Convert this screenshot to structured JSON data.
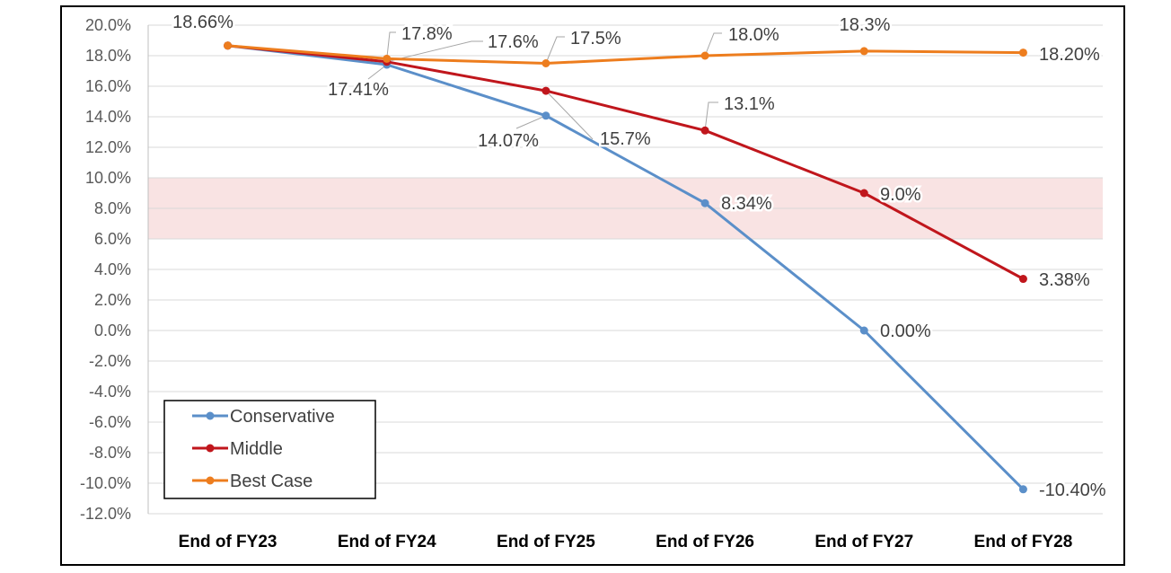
{
  "chart_data": {
    "type": "line",
    "categories": [
      "End of FY23",
      "End of FY24",
      "End of FY25",
      "End of FY26",
      "End of FY27",
      "End of FY28"
    ],
    "ylim": [
      -12,
      20
    ],
    "ytick_step": 2,
    "ytick_labels": [
      "20.0%",
      "18.0%",
      "16.0%",
      "14.0%",
      "12.0%",
      "10.0%",
      "8.0%",
      "6.0%",
      "4.0%",
      "2.0%",
      "0.0%",
      "-2.0%",
      "-4.0%",
      "-6.0%",
      "-8.0%",
      "-10.0%",
      "-12.0%"
    ],
    "shaded_band": {
      "from": 6,
      "to": 10,
      "color": "#f9e3e3"
    },
    "grid": true,
    "legend_position": "bottom-left",
    "series": [
      {
        "name": "Conservative",
        "color": "#5b8fc9",
        "values": [
          18.66,
          17.41,
          14.07,
          8.34,
          0.0,
          -10.4
        ],
        "labels": [
          "18.66%",
          "17.41%",
          "14.07%",
          "8.34%",
          "0.00%",
          "-10.40%"
        ]
      },
      {
        "name": "Middle",
        "color": "#c0161c",
        "values": [
          18.66,
          17.6,
          15.7,
          13.1,
          9.0,
          3.38
        ],
        "labels": [
          "",
          "17.6%",
          "15.7%",
          "13.1%",
          "9.0%",
          "3.38%"
        ]
      },
      {
        "name": "Best Case",
        "color": "#ed7d1e",
        "values": [
          18.66,
          17.8,
          17.5,
          18.0,
          18.3,
          18.2
        ],
        "labels": [
          "",
          "17.8%",
          "17.5%",
          "18.0%",
          "18.3%",
          "18.20%"
        ]
      }
    ]
  }
}
